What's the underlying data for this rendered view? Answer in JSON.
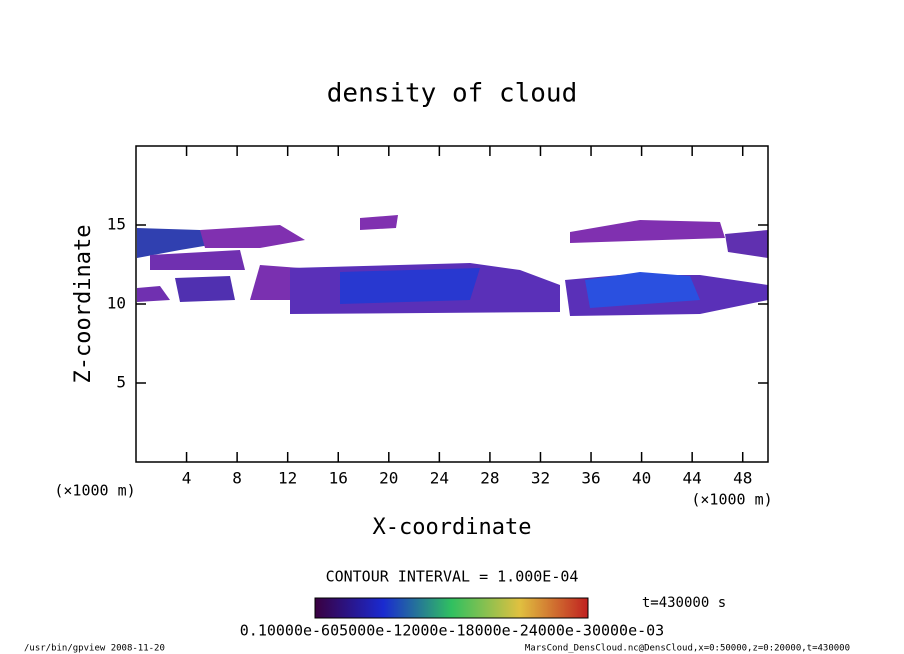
{
  "chart_data": {
    "type": "contour",
    "title": "density of cloud",
    "x_label": "X-coordinate",
    "y_label": "Z-coordinate",
    "x_unit": "(×1000 m)",
    "y_unit": "(×1000 m)",
    "xlim": [
      0,
      50
    ],
    "xticks": [
      4,
      8,
      12,
      16,
      20,
      24,
      28,
      32,
      36,
      40,
      44,
      48
    ],
    "ylim": [
      0,
      20
    ],
    "yticks": [
      5,
      10,
      15
    ],
    "contour_interval": "CONTOUR INTERVAL = 1.000E-04",
    "time_label": "t=430000 s",
    "colorbar_labels": "0.10000e-605000e-12000e-18000e-24000e-30000e-03",
    "footer_left": "/usr/bin/gpview  2008-11-20",
    "footer_right": "MarsCond_DensCloud.nc@DensCloud,x=0:50000,z=0:20000,t=430000"
  }
}
